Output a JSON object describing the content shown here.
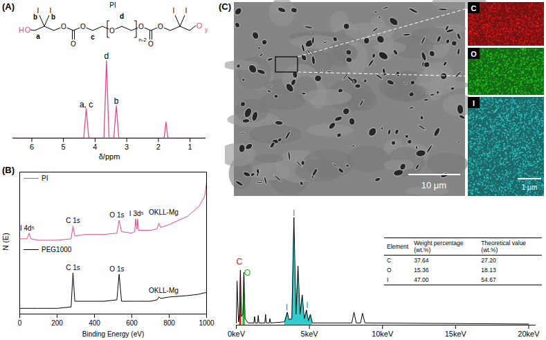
{
  "panel_labels": [
    "(A)",
    "(B)",
    "(C)"
  ],
  "structure": {
    "name": "PI",
    "end_group": "H",
    "oxygen": "O",
    "iodine": "I",
    "carbon_letters": [
      "a",
      "b",
      "c",
      "d"
    ],
    "repeat": "n-2",
    "end": "y",
    "color": "#e5488b"
  },
  "chart_data": [
    {
      "type": "line",
      "color": "#e5488b",
      "x": [
        6.6,
        4.36,
        4.28,
        4.2,
        3.72,
        3.64,
        3.56,
        3.41,
        3.33,
        3.25,
        1.82,
        1.76,
        1.7,
        0.5
      ],
      "values": [
        0,
        0,
        38,
        0,
        0,
        100,
        0,
        0,
        42,
        0,
        0,
        21,
        0,
        0
      ],
      "xlabel": "δ/ppm",
      "xlim": [
        6.6,
        0.5
      ],
      "xticks": [
        6,
        5,
        4,
        3,
        2,
        1
      ],
      "ylim": [
        0,
        110
      ],
      "tick_labels": "x",
      "annotations": [
        {
          "text": "a, c",
          "x": 4.28,
          "y": 40
        },
        {
          "text": "d",
          "x": 3.64,
          "y": 102
        },
        {
          "text": "b",
          "x": 3.33,
          "y": 44
        }
      ]
    },
    {
      "type": "line",
      "x": [
        0,
        40,
        50,
        60,
        100,
        200,
        275,
        285,
        295,
        350,
        450,
        520,
        532,
        545,
        600,
        615,
        620,
        625,
        628,
        631,
        636,
        700,
        735,
        745,
        755,
        800,
        900,
        960,
        990,
        1000
      ],
      "series": [
        {
          "name": "PI",
          "color": "#e5488b",
          "values": [
            53,
            53,
            57,
            53,
            52,
            52,
            53,
            62,
            55,
            56,
            56,
            57,
            66,
            58,
            57,
            58,
            67,
            60,
            60,
            67,
            59,
            59,
            60,
            64,
            61,
            63,
            69,
            76,
            83,
            93
          ]
        },
        {
          "name": "PEG1000",
          "color": "#000000",
          "values": [
            4,
            4,
            4,
            4,
            4,
            4,
            5,
            29,
            9,
            9,
            9,
            10,
            28,
            9,
            9,
            9,
            9,
            9,
            9,
            9,
            9,
            9,
            10,
            12,
            11,
            12,
            13,
            14,
            15,
            15
          ]
        }
      ],
      "xlabel": "Binding Energy (eV)",
      "ylabel": "N (E)",
      "xlim": [
        0,
        1000
      ],
      "xticks": [
        0,
        200,
        400,
        600,
        800,
        1000
      ],
      "ylim": [
        0,
        100
      ],
      "tick_labels": "x",
      "legend": "upper left",
      "annotations": [
        {
          "text": "I 4d⁵",
          "x": 40,
          "y": 59
        },
        {
          "text": "C 1s",
          "x": 285,
          "y": 64
        },
        {
          "text": "O 1s",
          "x": 520,
          "y": 68
        },
        {
          "text": "I 3d⁵",
          "x": 625,
          "y": 69
        },
        {
          "text": "OKLL-Mg",
          "x": 770,
          "y": 70
        },
        {
          "text": "C 1s",
          "x": 285,
          "y": 31
        },
        {
          "text": "O 1s",
          "x": 520,
          "y": 30
        },
        {
          "text": "OKLL-Mg",
          "x": 770,
          "y": 15
        }
      ]
    },
    {
      "type": "line",
      "x": [
        0,
        0.05,
        0.15,
        0.22,
        0.28,
        0.35,
        0.45,
        0.52,
        0.6,
        0.8,
        1.2,
        1.25,
        1.3,
        1.45,
        1.5,
        1.55,
        1.95,
        2.0,
        2.05,
        2.25,
        2.3,
        2.35,
        3.3,
        3.49,
        3.6,
        3.8,
        3.94,
        4.08,
        4.22,
        4.36,
        4.51,
        4.65,
        4.8,
        4.93,
        5.07,
        5.2,
        7.9,
        8.05,
        8.2,
        8.5,
        8.63,
        8.8,
        20
      ],
      "series": [
        {
          "type": "area",
          "color": "#ee1111",
          "values": [
            null,
            null,
            null,
            10,
            51,
            8,
            null,
            null,
            null,
            null,
            null,
            null,
            null,
            null,
            null,
            null,
            null,
            null,
            null,
            null,
            null,
            null,
            null,
            null,
            null,
            null,
            null,
            null,
            null,
            null,
            null,
            null,
            null,
            null,
            null,
            null,
            null,
            null,
            null,
            null,
            null,
            null,
            null
          ]
        },
        {
          "type": "area",
          "color": "#22bb22",
          "values": [
            null,
            null,
            null,
            null,
            null,
            null,
            10,
            49,
            6,
            null,
            null,
            null,
            null,
            null,
            null,
            null,
            null,
            null,
            null,
            null,
            null,
            null,
            null,
            null,
            null,
            null,
            null,
            null,
            null,
            null,
            null,
            null,
            null,
            null,
            null,
            null,
            null,
            null,
            null,
            null,
            null,
            null,
            null
          ]
        },
        {
          "type": "area",
          "color": "#33cccc",
          "values": [
            null,
            null,
            null,
            null,
            null,
            null,
            null,
            null,
            null,
            null,
            null,
            null,
            null,
            null,
            null,
            null,
            null,
            null,
            null,
            null,
            null,
            null,
            3,
            12,
            5,
            6,
            100,
            10,
            55,
            10,
            28,
            6,
            14,
            4,
            10,
            2,
            null,
            null,
            null,
            null,
            null,
            null,
            null
          ]
        },
        {
          "type": "line",
          "color": "#000000",
          "values": [
            2,
            41,
            3,
            10,
            51,
            8,
            10,
            49,
            6,
            2,
            2,
            8,
            2,
            2,
            9,
            2,
            2,
            10,
            2,
            2,
            6,
            2,
            3,
            12,
            5,
            6,
            100,
            10,
            55,
            10,
            28,
            6,
            14,
            4,
            10,
            2,
            2,
            12,
            2,
            2,
            11,
            2,
            1
          ]
        }
      ],
      "xlim": [
        0,
        20.5
      ],
      "xticks": [
        {
          "value": 0,
          "label": "0keV"
        },
        {
          "value": 5,
          "label": "5keV"
        },
        {
          "value": 10,
          "label": "10keV"
        },
        {
          "value": 15,
          "label": "15keV"
        },
        {
          "value": 20,
          "label": "20keV"
        }
      ],
      "ylim": [
        0,
        108
      ],
      "tick_labels": "x",
      "annotations": [
        {
          "text": "C",
          "x": 0.2,
          "y": 56,
          "color": "#ee1111"
        },
        {
          "text": "O",
          "x": 0.75,
          "y": 46,
          "color": "#22bb22"
        },
        {
          "text": "I",
          "x": 3.94,
          "y": 101,
          "color": "#3f7fc8"
        },
        {
          "text": "I",
          "x": 3.45,
          "y": 14,
          "color": "#3f7fc8"
        },
        {
          "text": "I",
          "x": 4.85,
          "y": 16,
          "color": "#3f7fc8"
        }
      ]
    }
  ],
  "micrographs": {
    "sem_scale_bar": "10 μm",
    "map_scale_bar": "1 μm",
    "maps": [
      {
        "element": "C",
        "color": "#ff1a1a"
      },
      {
        "element": "O",
        "color": "#22dd22"
      },
      {
        "element": "I",
        "color": "#33dddd"
      }
    ]
  },
  "eds_table": {
    "columns": [
      "Element",
      "Weight percentage (wt.%)",
      "Theoretical value (wt.%)"
    ],
    "rows": [
      [
        "C",
        "37.64",
        "27.20"
      ],
      [
        "O",
        "15.36",
        "18.13"
      ],
      [
        "I",
        "47.00",
        "54.67"
      ]
    ]
  }
}
